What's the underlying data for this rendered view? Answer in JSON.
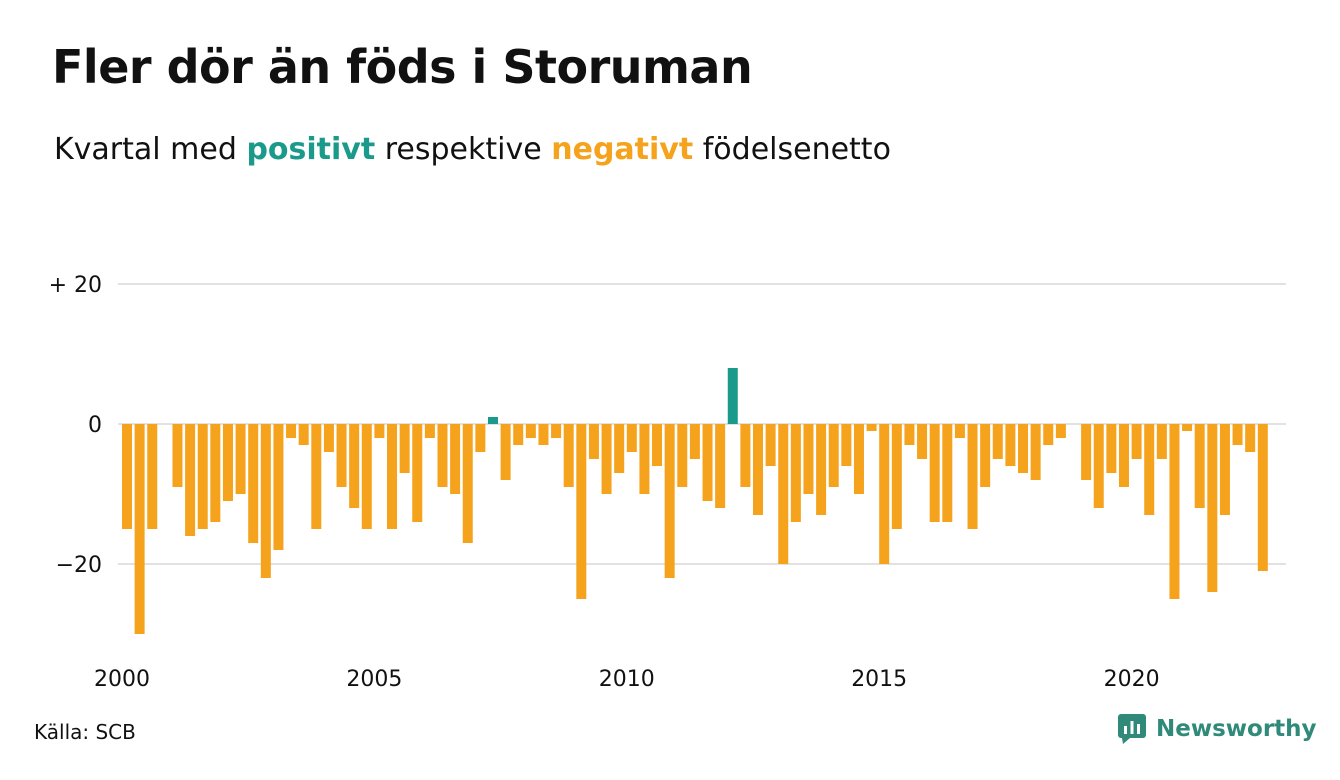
{
  "title": "Fler dör än föds i Storuman",
  "subtitle": {
    "prefix": "Kvartal med",
    "positive": "positivt",
    "middle": "respektive",
    "negative": "negativt",
    "suffix": "födelsenetto"
  },
  "source": "Källa: SCB",
  "brand": "Newsworthy",
  "colors": {
    "positive": "#1a9a8a",
    "negative": "#f5a21c",
    "grid": "#e2e2e2",
    "brand": "#2f8a7a"
  },
  "chart_data": {
    "type": "bar",
    "title": "Fler dör än föds i Storuman",
    "subtitle": "Kvartal med positivt respektive negativt födelsenetto",
    "xlabel": "",
    "ylabel": "",
    "ylim": [
      -30,
      20
    ],
    "y_ticks": [
      {
        "value": 20,
        "label": "+ 20"
      },
      {
        "value": 0,
        "label": "0"
      },
      {
        "value": -20,
        "label": "−20"
      }
    ],
    "x_ticks": [
      {
        "value": 2000,
        "label": "2000"
      },
      {
        "value": 2005,
        "label": "2005"
      },
      {
        "value": 2010,
        "label": "2010"
      },
      {
        "value": 2015,
        "label": "2015"
      },
      {
        "value": 2020,
        "label": "2020"
      }
    ],
    "start_year": 2000,
    "frequency": "quarterly",
    "grid": true,
    "legend": "none",
    "series": [
      {
        "values": [
          -15,
          -30,
          -15,
          0,
          -9,
          -16,
          -15,
          -14,
          -11,
          -10,
          -17,
          -22,
          -18,
          -2,
          -3,
          -15,
          -4,
          -9,
          -12,
          -15,
          -2,
          -15,
          -7,
          -14,
          -2,
          -9,
          -10,
          -17,
          -4,
          1,
          -8,
          -3,
          -2,
          -3,
          -2,
          -9,
          -25,
          -5,
          -10,
          -7,
          -4,
          -10,
          -6,
          -22,
          -9,
          -5,
          -11,
          -12,
          8,
          -9,
          -13,
          -6,
          -20,
          -14,
          -10,
          -13,
          -9,
          -6,
          -10,
          -1,
          -20,
          -15,
          -3,
          -5,
          -14,
          -14,
          -2,
          -15,
          -9,
          -5,
          -6,
          -7,
          -8,
          -3,
          -2,
          0,
          -8,
          -12,
          -7,
          -9,
          -5,
          -13,
          -5,
          -25,
          -1,
          -12,
          -24,
          -13,
          -3,
          -4,
          -21
        ]
      }
    ]
  }
}
